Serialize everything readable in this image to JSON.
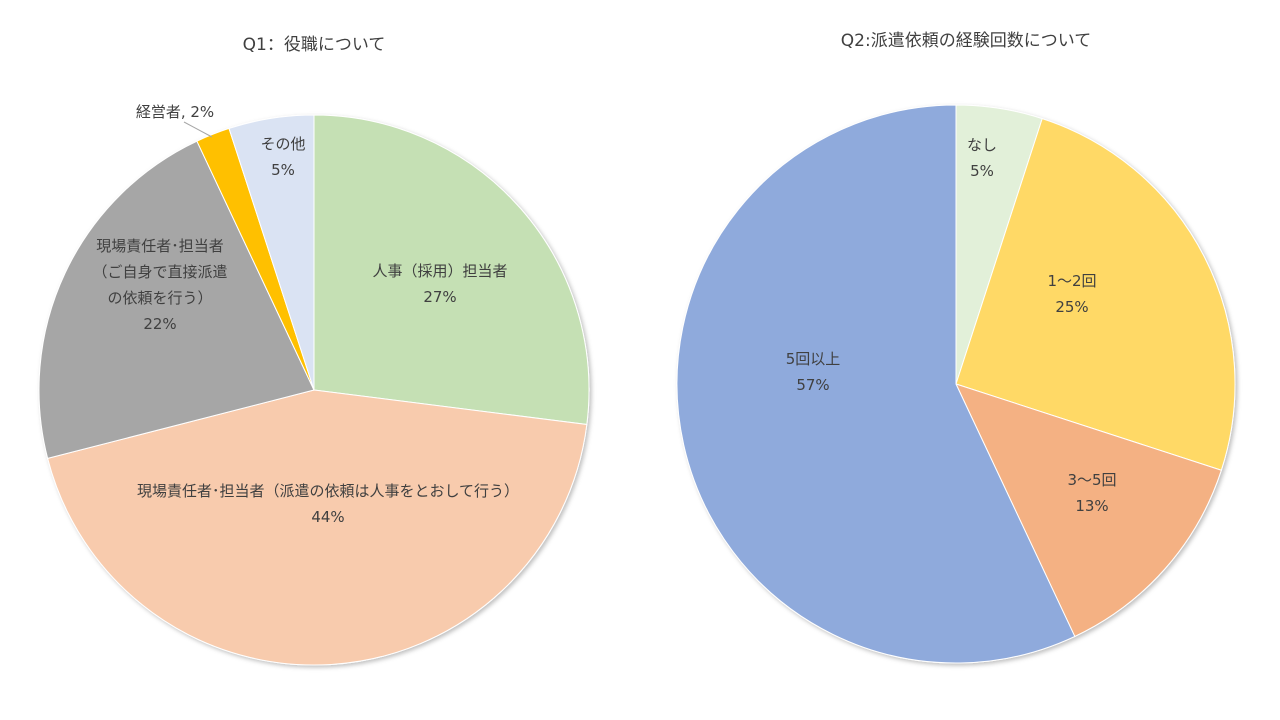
{
  "chart_data": [
    {
      "type": "pie",
      "title": "Q1：役職について",
      "start_angle_deg": 0,
      "direction": "clockwise",
      "slices": [
        {
          "id": "hr",
          "label_lines": [
            "人事（採用）担当者",
            "27%"
          ],
          "value": 27,
          "color": "#C5E0B4"
        },
        {
          "id": "field-via-hr",
          "label_lines": [
            "現場責任者･担当者（派遣の依頼は人事をとおして行う）",
            "44%"
          ],
          "value": 44,
          "color": "#F8CBAD"
        },
        {
          "id": "field-direct",
          "label_lines": [
            "現場責任者･担当者",
            "（ご自身で直接派遣",
            "の依頼を行う）",
            "22%"
          ],
          "value": 22,
          "color": "#A6A6A6"
        },
        {
          "id": "executive",
          "label_lines": [
            "経営者, 2%"
          ],
          "value": 2,
          "color": "#FFC000"
        },
        {
          "id": "other",
          "label_lines": [
            "その他",
            "5%"
          ],
          "value": 5,
          "color": "#DAE3F3"
        }
      ]
    },
    {
      "type": "pie",
      "title": "Q2:派遣依頼の経験回数について",
      "start_angle_deg": 0,
      "direction": "clockwise",
      "slices": [
        {
          "id": "none",
          "label_lines": [
            "なし",
            "5%"
          ],
          "value": 5,
          "color": "#E2F0D9"
        },
        {
          "id": "1-2",
          "label_lines": [
            "1～2回",
            "25%"
          ],
          "value": 25,
          "color": "#FFD966"
        },
        {
          "id": "3-5",
          "label_lines": [
            "3～5回",
            "13%"
          ],
          "value": 13,
          "color": "#F4B183"
        },
        {
          "id": "5plus",
          "label_lines": [
            "5回以上",
            "57%"
          ],
          "value": 57,
          "color": "#8FAADC"
        }
      ]
    }
  ]
}
